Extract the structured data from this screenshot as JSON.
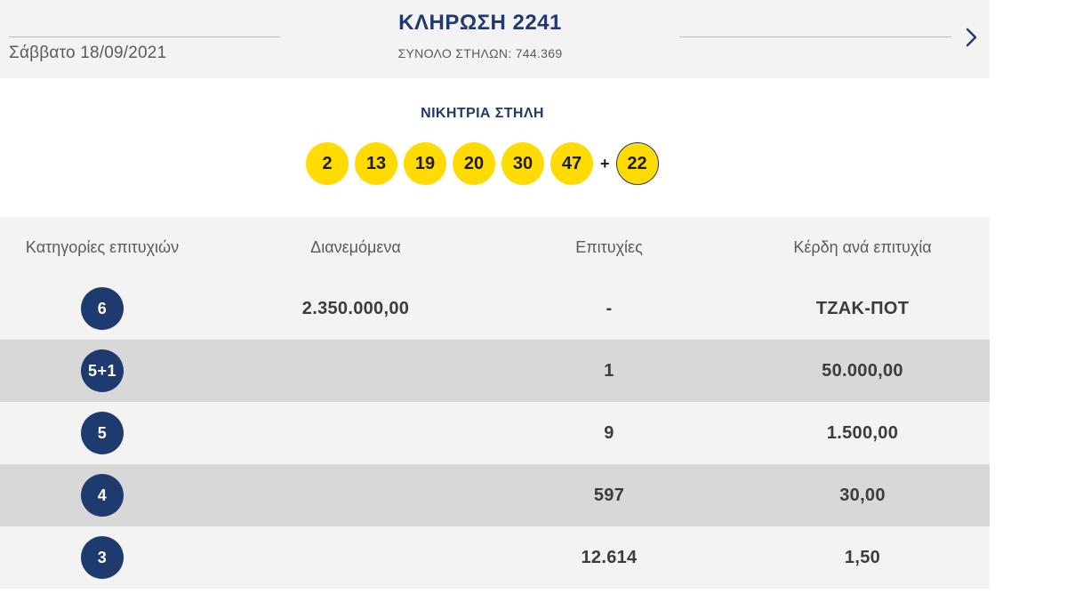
{
  "header": {
    "date": "Σάββατο 18/09/2021",
    "draw_title": "ΚΛΗΡΩΣΗ 2241",
    "total_columns": "ΣΥΝΟΛΟ ΣΤΗΛΩΝ: 744.369",
    "next_icon": "chevron-right-icon"
  },
  "winning": {
    "title": "ΝΙΚΗΤΡΙΑ ΣΤΗΛΗ",
    "numbers": [
      "2",
      "13",
      "19",
      "20",
      "30",
      "47"
    ],
    "plus": "+",
    "bonus": "22"
  },
  "table": {
    "headers": [
      "Κατηγορίες επιτυχιών",
      "Διανεμόμενα",
      "Επιτυχίες",
      "Κέρδη ανά επιτυχία"
    ],
    "rows": [
      {
        "category": "6",
        "distributed": "2.350.000,00",
        "winners": "-",
        "prize": "ΤΖΑΚ-ΠΟΤ"
      },
      {
        "category": "5+1",
        "distributed": "",
        "winners": "1",
        "prize": "50.000,00"
      },
      {
        "category": "5",
        "distributed": "",
        "winners": "9",
        "prize": "1.500,00"
      },
      {
        "category": "4",
        "distributed": "",
        "winners": "597",
        "prize": "30,00"
      },
      {
        "category": "3",
        "distributed": "",
        "winners": "12.614",
        "prize": "1,50"
      }
    ]
  },
  "colors": {
    "navy": "#1f3a6e",
    "ball_yellow": "#ffdb00",
    "row_light": "#f3f3f3",
    "row_dark": "#d8d8d8"
  }
}
